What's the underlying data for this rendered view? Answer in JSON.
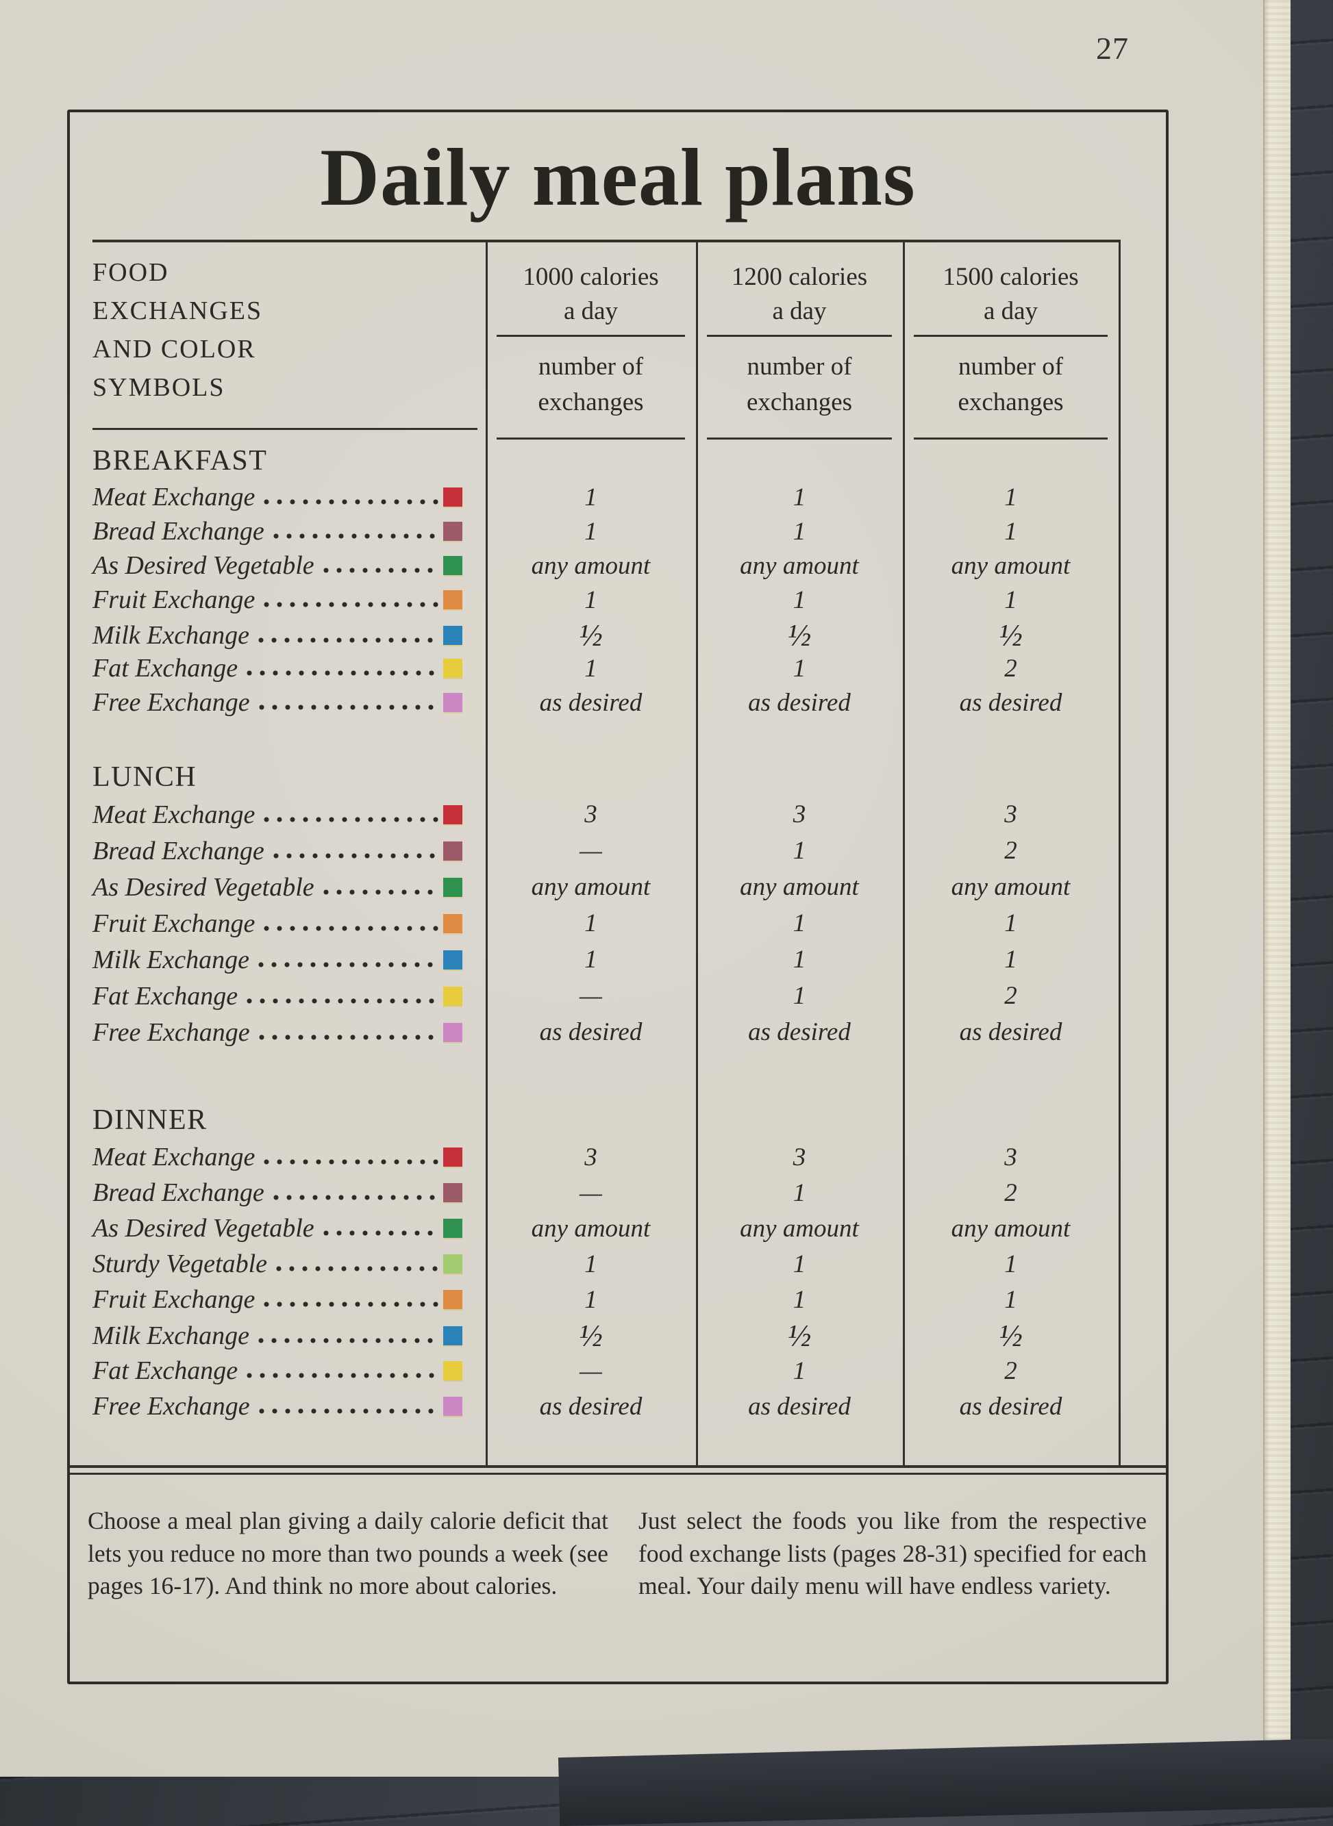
{
  "page_number": "27",
  "title": "Daily meal plans",
  "table": {
    "header_left_lines": [
      "FOOD",
      "EXCHANGES",
      "AND COLOR",
      "SYMBOLS"
    ],
    "columns": [
      {
        "cal": "1000 calories",
        "per": "a day",
        "num": "number of",
        "exch": "exchanges"
      },
      {
        "cal": "1200 calories",
        "per": "a day",
        "num": "number of",
        "exch": "exchanges"
      },
      {
        "cal": "1500 calories",
        "per": "a day",
        "num": "number of",
        "exch": "exchanges"
      }
    ],
    "sections": [
      {
        "name": "BREAKFAST",
        "rows": [
          {
            "label": "Meat Exchange",
            "symbol": "red-square",
            "color": "#c52f38",
            "values": [
              "1",
              "1",
              "1"
            ]
          },
          {
            "label": "Bread Exchange",
            "symbol": "maroon-square",
            "color": "#9c5b66",
            "values": [
              "1",
              "1",
              "1"
            ]
          },
          {
            "label": "As Desired Vegetable",
            "symbol": "green-square",
            "color": "#2f9150",
            "values": [
              "any amount",
              "any amount",
              "any amount"
            ]
          },
          {
            "label": "Fruit Exchange",
            "symbol": "orange-square",
            "color": "#e08b43",
            "values": [
              "1",
              "1",
              "1"
            ]
          },
          {
            "label": "Milk Exchange",
            "symbol": "blue-square",
            "color": "#2a82b8",
            "values": [
              "½",
              "½",
              "½"
            ]
          },
          {
            "label": "Fat Exchange",
            "symbol": "yellow-square",
            "color": "#e7cc3c",
            "values": [
              "1",
              "1",
              "2"
            ]
          },
          {
            "label": "Free Exchange",
            "symbol": "pink-square",
            "color": "#ce87c5",
            "values": [
              "as desired",
              "as desired",
              "as desired"
            ]
          }
        ]
      },
      {
        "name": "LUNCH",
        "rows": [
          {
            "label": "Meat Exchange",
            "symbol": "red-square",
            "color": "#c52f38",
            "values": [
              "3",
              "3",
              "3"
            ]
          },
          {
            "label": "Bread Exchange",
            "symbol": "maroon-square",
            "color": "#9c5b66",
            "values": [
              "—",
              "1",
              "2"
            ]
          },
          {
            "label": "As Desired Vegetable",
            "symbol": "green-square",
            "color": "#2f9150",
            "values": [
              "any amount",
              "any amount",
              "any amount"
            ]
          },
          {
            "label": "Fruit Exchange",
            "symbol": "orange-square",
            "color": "#e08b43",
            "values": [
              "1",
              "1",
              "1"
            ]
          },
          {
            "label": "Milk Exchange",
            "symbol": "blue-square",
            "color": "#2a82b8",
            "values": [
              "1",
              "1",
              "1"
            ]
          },
          {
            "label": "Fat Exchange",
            "symbol": "yellow-square",
            "color": "#e7cc3c",
            "values": [
              "—",
              "1",
              "2"
            ]
          },
          {
            "label": "Free Exchange",
            "symbol": "pink-square",
            "color": "#ce87c5",
            "values": [
              "as desired",
              "as desired",
              "as desired"
            ]
          }
        ]
      },
      {
        "name": "DINNER",
        "rows": [
          {
            "label": "Meat Exchange",
            "symbol": "red-square",
            "color": "#c52f38",
            "values": [
              "3",
              "3",
              "3"
            ]
          },
          {
            "label": "Bread Exchange",
            "symbol": "maroon-square",
            "color": "#9c5b66",
            "values": [
              "—",
              "1",
              "2"
            ]
          },
          {
            "label": "As Desired Vegetable",
            "symbol": "green-square",
            "color": "#2f9150",
            "values": [
              "any amount",
              "any amount",
              "any amount"
            ]
          },
          {
            "label": "Sturdy Vegetable",
            "symbol": "light-green-square",
            "color": "#a3cb70",
            "values": [
              "1",
              "1",
              "1"
            ]
          },
          {
            "label": "Fruit Exchange",
            "symbol": "orange-square",
            "color": "#e08b43",
            "values": [
              "1",
              "1",
              "1"
            ]
          },
          {
            "label": "Milk Exchange",
            "symbol": "blue-square",
            "color": "#2a82b8",
            "values": [
              "½",
              "½",
              "½"
            ]
          },
          {
            "label": "Fat Exchange",
            "symbol": "yellow-square",
            "color": "#e7cc3c",
            "values": [
              "—",
              "1",
              "2"
            ]
          },
          {
            "label": "Free Exchange",
            "symbol": "pink-square",
            "color": "#ce87c5",
            "values": [
              "as desired",
              "as desired",
              "as desired"
            ]
          }
        ]
      }
    ]
  },
  "footer": {
    "left": "Choose a meal plan giving a daily calorie deficit that lets you reduce no more than two pounds a week (see pages 16-17). And think no more about calories.",
    "right": "Just select the foods you like from the respective food exchange lists (pages 28-31) specified for each meal. Your daily menu will have endless variety."
  }
}
